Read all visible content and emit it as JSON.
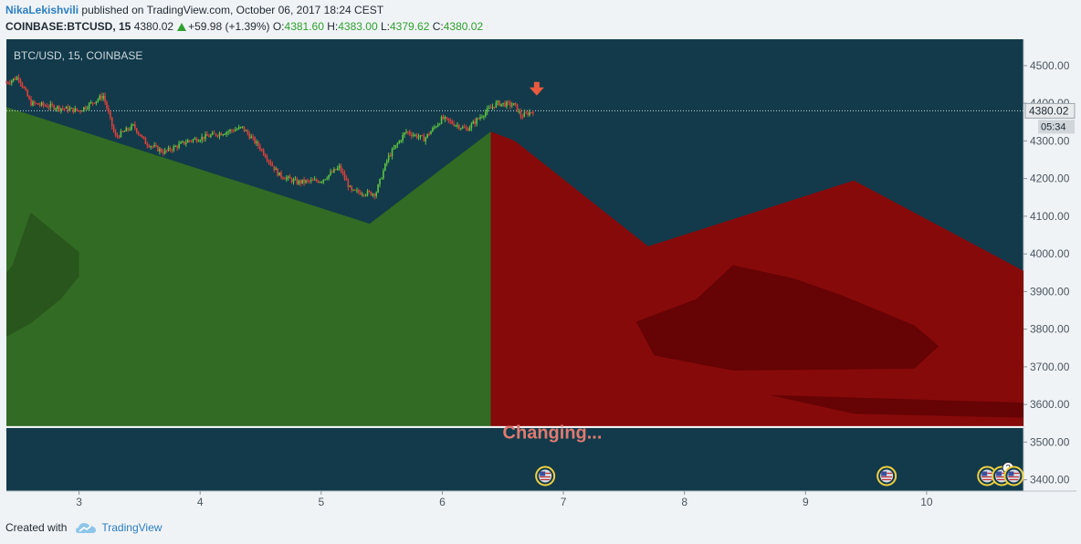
{
  "header": {
    "author": "NikaLekishvili",
    "published_text": "published on TradingView.com, October 06, 2017 18:24 CEST"
  },
  "ticker": {
    "symbol": "COINBASE:BTCUSD, 15",
    "last": "4380.02",
    "change": "+59.98 (+1.39%)",
    "o_label": "O:",
    "open": "4381.60",
    "h_label": "H:",
    "high": "4383.00",
    "l_label": "L:",
    "low": "4379.62",
    "c_label": "C:",
    "close": "4380.02"
  },
  "chart_data": {
    "type": "candlestick",
    "pane_label": "BTC/USD, 15, COINBASE",
    "x_ticks": [
      "3",
      "4",
      "5",
      "6",
      "7",
      "8",
      "9",
      "10"
    ],
    "y_ticks": [
      "4500.00",
      "4400.00",
      "4300.00",
      "4200.00",
      "4100.00",
      "4000.00",
      "3900.00",
      "3800.00",
      "3700.00",
      "3600.00",
      "3500.00",
      "3400.00"
    ],
    "ylim": [
      3370,
      4570
    ],
    "xlim": [
      2.4,
      10.8
    ],
    "last_price_label": "4380.02",
    "countdown_label": "05:34",
    "annotation_text": "Changing...",
    "price_path": [
      [
        2.4,
        4455
      ],
      [
        2.5,
        4470
      ],
      [
        2.6,
        4400
      ],
      [
        2.8,
        4390
      ],
      [
        3.0,
        4380
      ],
      [
        3.2,
        4420
      ],
      [
        3.3,
        4310
      ],
      [
        3.45,
        4340
      ],
      [
        3.55,
        4295
      ],
      [
        3.7,
        4270
      ],
      [
        3.9,
        4300
      ],
      [
        4.1,
        4315
      ],
      [
        4.35,
        4335
      ],
      [
        4.5,
        4280
      ],
      [
        4.65,
        4210
      ],
      [
        4.8,
        4190
      ],
      [
        5.0,
        4195
      ],
      [
        5.15,
        4230
      ],
      [
        5.25,
        4165
      ],
      [
        5.45,
        4160
      ],
      [
        5.55,
        4255
      ],
      [
        5.7,
        4325
      ],
      [
        5.85,
        4305
      ],
      [
        6.0,
        4360
      ],
      [
        6.2,
        4330
      ],
      [
        6.35,
        4375
      ],
      [
        6.45,
        4400
      ],
      [
        6.6,
        4395
      ],
      [
        6.65,
        4365
      ],
      [
        6.75,
        4380
      ]
    ],
    "green_area": [
      [
        2.4,
        4390
      ],
      [
        5.4,
        4080
      ],
      [
        6.4,
        4325
      ],
      [
        6.4,
        3540
      ],
      [
        2.4,
        3540
      ]
    ],
    "green_shade": [
      [
        2.4,
        3780
      ],
      [
        2.6,
        3815
      ],
      [
        2.85,
        3880
      ],
      [
        3.0,
        3940
      ],
      [
        3.0,
        4005
      ],
      [
        2.6,
        4110
      ],
      [
        2.45,
        3970
      ],
      [
        2.4,
        3950
      ]
    ],
    "red_area": [
      [
        6.4,
        4325
      ],
      [
        6.6,
        4300
      ],
      [
        7.7,
        4020
      ],
      [
        9.4,
        4195
      ],
      [
        10.8,
        3955
      ],
      [
        10.8,
        3540
      ],
      [
        6.4,
        3540
      ]
    ],
    "red_shade": [
      [
        7.6,
        3820
      ],
      [
        8.1,
        3880
      ],
      [
        8.4,
        3970
      ],
      [
        8.9,
        3935
      ],
      [
        9.3,
        3890
      ],
      [
        9.9,
        3810
      ],
      [
        10.1,
        3755
      ],
      [
        9.9,
        3695
      ],
      [
        8.4,
        3690
      ],
      [
        7.75,
        3730
      ]
    ],
    "red_shade_low": [
      [
        8.7,
        3625
      ],
      [
        10.8,
        3605
      ],
      [
        10.8,
        3565
      ],
      [
        9.4,
        3575
      ]
    ],
    "sell_arrow_at": [
      6.78,
      4435
    ],
    "event_markers": [
      {
        "x": 6.85,
        "count": ""
      },
      {
        "x": 9.67,
        "count": ""
      },
      {
        "x": 10.5,
        "count": ""
      },
      {
        "x": 10.62,
        "count": "2"
      },
      {
        "x": 10.72,
        "count": ""
      }
    ],
    "colors": {
      "background": "#123a4a",
      "green_area": "#326b24",
      "green_shade": "#29561d",
      "red_area": "#870a0b",
      "red_shade": "#660304",
      "candle_up": "#5fc341",
      "candle_down": "#e0403a",
      "annotation": "#e07a70",
      "sell_arrow": "#e85a3e"
    }
  },
  "footer": {
    "created_with": "Created with",
    "brand": "TradingView"
  }
}
